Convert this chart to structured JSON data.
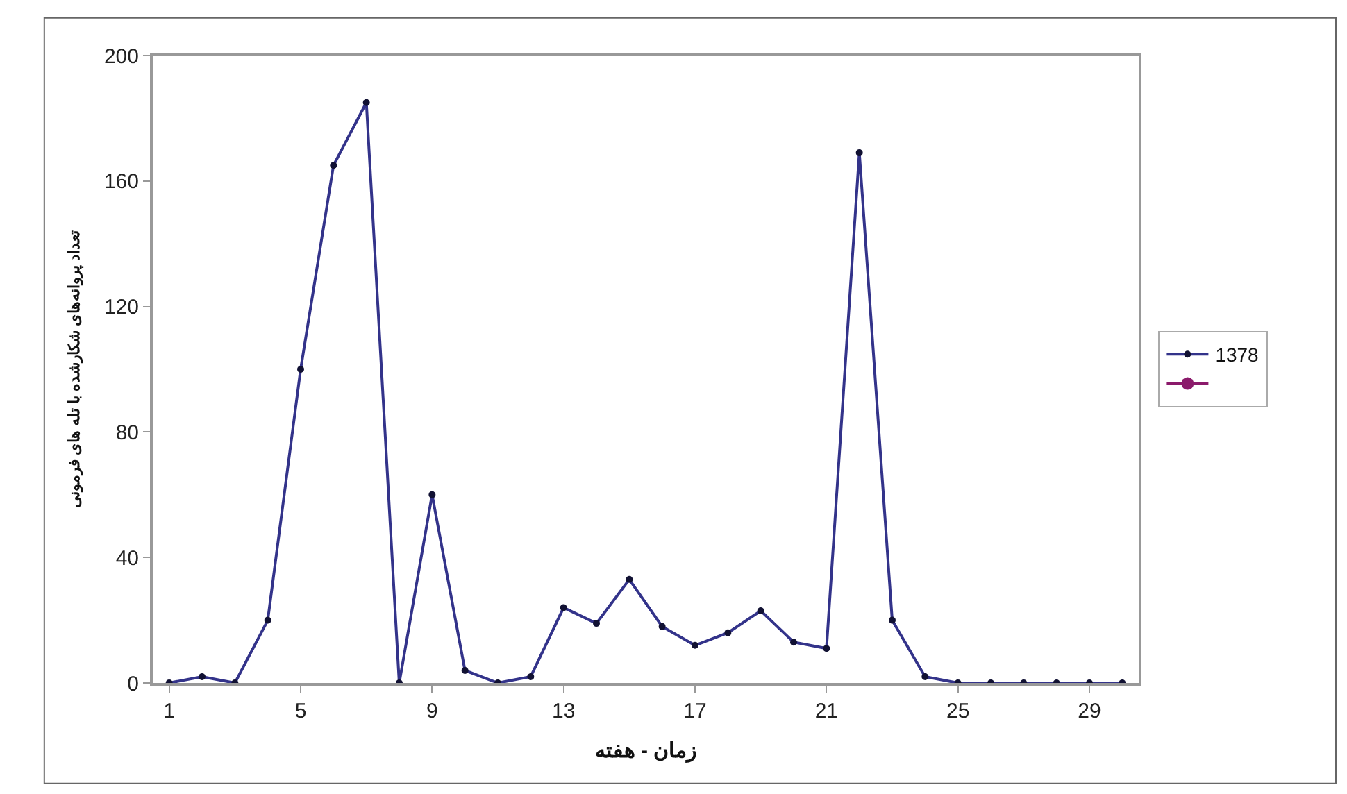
{
  "chart_data": {
    "type": "line",
    "xlabel": "زمان - هفته",
    "ylabel": "تعداد پروانه‌های شکارشده با تله های فرمونی",
    "x": [
      1,
      2,
      3,
      4,
      5,
      6,
      7,
      8,
      9,
      10,
      11,
      12,
      13,
      14,
      15,
      16,
      17,
      18,
      19,
      20,
      21,
      22,
      23,
      24,
      25,
      26,
      27,
      28,
      29,
      30
    ],
    "series": [
      {
        "name": "1378",
        "color": "#33338a",
        "marker": "circle",
        "values": [
          0,
          2,
          0,
          20,
          100,
          165,
          185,
          0,
          60,
          4,
          0,
          2,
          24,
          19,
          33,
          18,
          12,
          16,
          23,
          13,
          11,
          169,
          20,
          2,
          0,
          0,
          0,
          0,
          0,
          0
        ]
      },
      {
        "color": "#8b1a6b",
        "marker": "circle",
        "values": [
          null,
          null,
          null,
          null,
          null,
          null,
          null,
          null,
          null,
          null,
          null,
          null,
          null,
          null,
          null,
          null,
          null,
          null,
          null,
          null,
          null,
          null,
          null,
          null,
          null,
          null,
          null,
          null,
          null,
          null
        ]
      }
    ],
    "xlim": [
      0.5,
      30.5
    ],
    "xticks": [
      1,
      5,
      9,
      13,
      17,
      21,
      25,
      29
    ],
    "ylim": [
      0,
      200
    ],
    "yticks": [
      0,
      40,
      80,
      120,
      160,
      200
    ],
    "legend": "right",
    "line_style": "solid"
  }
}
